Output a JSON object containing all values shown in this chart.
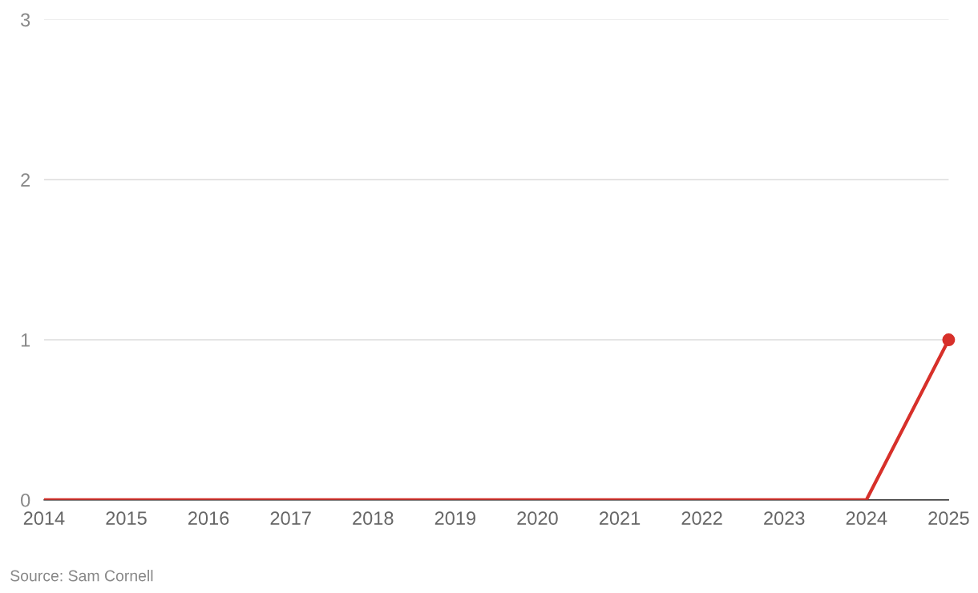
{
  "chart_data": {
    "type": "line",
    "x": [
      2014,
      2015,
      2016,
      2017,
      2018,
      2019,
      2020,
      2021,
      2022,
      2023,
      2024,
      2025
    ],
    "series": [
      {
        "color": "#d7302a",
        "values": [
          0,
          0,
          0,
          0,
          0,
          0,
          0,
          0,
          0,
          0,
          0,
          1
        ]
      },
      {
        "type": "scatter",
        "color": "#d7302a",
        "x": [
          2025
        ],
        "values": [
          1
        ],
        "marker": "circle"
      }
    ],
    "xlim": [
      2014,
      2025
    ],
    "xticks": [
      2014,
      2015,
      2016,
      2017,
      2018,
      2019,
      2020,
      2021,
      2022,
      2023,
      2024,
      2025
    ],
    "ylim": [
      0,
      3
    ],
    "yticks": [
      0,
      1,
      2,
      3
    ],
    "grid": "y",
    "legend": false,
    "annotations": [
      "Source: Sam Cornell"
    ]
  }
}
